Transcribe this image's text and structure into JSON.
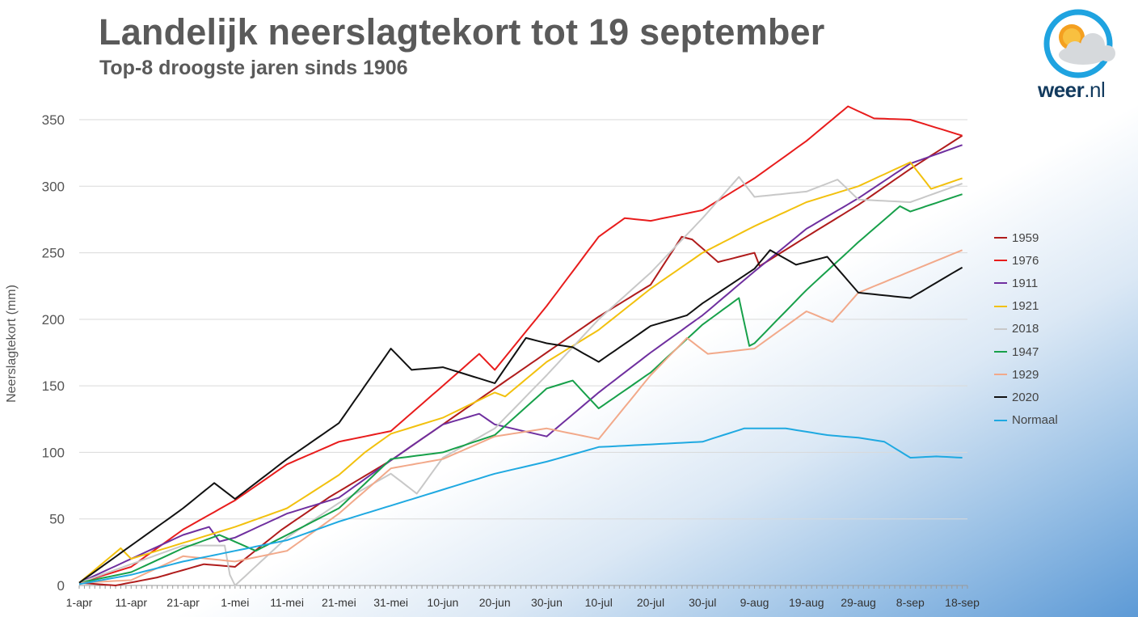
{
  "header": {
    "title": "Landelijk neerslagtekort tot 19 september",
    "subtitle": "Top-8 droogste jaren sinds 1906"
  },
  "logo": {
    "brand": "weer",
    "tld": ".nl",
    "icon": "sun-cloud-icon"
  },
  "chart_data": {
    "type": "line",
    "title": "Landelijk neerslagtekort tot 19 september",
    "subtitle": "Top-8 droogste jaren sinds 1906",
    "xlabel": "",
    "ylabel": "Neerslagtekort (mm)",
    "ylim": [
      0,
      350
    ],
    "yticks": [
      0,
      50,
      100,
      150,
      200,
      250,
      300,
      350
    ],
    "xlim": [
      "1-apr",
      "19-sep"
    ],
    "x_tick_labels": [
      "1-apr",
      "11-apr",
      "21-apr",
      "1-mei",
      "11-mei",
      "21-mei",
      "31-mei",
      "10-jun",
      "20-jun",
      "30-jun",
      "10-jul",
      "20-jul",
      "30-jul",
      "9-aug",
      "19-aug",
      "29-aug",
      "8-sep",
      "18-sep"
    ],
    "grid": "horizontal",
    "legend_position": "right",
    "series": [
      {
        "name": "1959",
        "color": "#b01c1c",
        "x": [
          "1-apr",
          "8-apr",
          "16-apr",
          "25-apr",
          "1-mei",
          "10-mei",
          "19-mei",
          "31-mei",
          "10-jun",
          "20-jun",
          "30-jun",
          "10-jul",
          "20-jul",
          "26-jul",
          "28-jul",
          "2-aug",
          "9-aug",
          "10-aug",
          "19-aug",
          "29-aug",
          "8-sep",
          "18-sep"
        ],
        "y": [
          2,
          0,
          6,
          16,
          14,
          42,
          66,
          94,
          121,
          148,
          175,
          202,
          226,
          262,
          260,
          243,
          250,
          240,
          262,
          286,
          313,
          338
        ]
      },
      {
        "name": "1976",
        "color": "#e81c1c",
        "x": [
          "1-apr",
          "11-apr",
          "21-apr",
          "1-mei",
          "11-mei",
          "21-mei",
          "31-mei",
          "10-jun",
          "17-jun",
          "20-jun",
          "30-jun",
          "10-jul",
          "15-jul",
          "20-jul",
          "30-jul",
          "9-aug",
          "19-aug",
          "27-aug",
          "1-sep",
          "8-sep",
          "18-sep"
        ],
        "y": [
          2,
          14,
          42,
          64,
          91,
          108,
          116,
          150,
          174,
          162,
          210,
          262,
          276,
          274,
          282,
          306,
          334,
          360,
          351,
          350,
          338
        ]
      },
      {
        "name": "1911",
        "color": "#6f2f9f",
        "x": [
          "1-apr",
          "21-apr",
          "26-apr",
          "28-apr",
          "1-mei",
          "11-mei",
          "21-mei",
          "31-mei",
          "10-jun",
          "17-jun",
          "20-jun",
          "30-jun",
          "10-jul",
          "20-jul",
          "30-jul",
          "9-aug",
          "19-aug",
          "29-aug",
          "8-sep",
          "18-sep"
        ],
        "y": [
          2,
          38,
          44,
          33,
          36,
          54,
          66,
          94,
          121,
          129,
          121,
          112,
          145,
          175,
          203,
          236,
          268,
          291,
          317,
          331
        ]
      },
      {
        "name": "1921",
        "color": "#f2c10e",
        "x": [
          "1-apr",
          "9-apr",
          "11-apr",
          "21-apr",
          "1-mei",
          "11-mei",
          "21-mei",
          "26-mei",
          "31-mei",
          "10-jun",
          "20-jun",
          "22-jun",
          "30-jun",
          "10-jul",
          "20-jul",
          "30-jul",
          "9-aug",
          "19-aug",
          "29-aug",
          "8-sep",
          "12-sep",
          "18-sep"
        ],
        "y": [
          2,
          28,
          20,
          32,
          44,
          58,
          83,
          100,
          114,
          126,
          145,
          142,
          168,
          192,
          223,
          250,
          270,
          288,
          300,
          318,
          298,
          306
        ]
      },
      {
        "name": "2018",
        "color": "#c8c8c8",
        "x": [
          "1-apr",
          "21-apr",
          "29-apr",
          "30-apr",
          "1-mei",
          "11-mei",
          "21-mei",
          "31-mei",
          "5-jun",
          "10-jun",
          "20-jun",
          "30-jun",
          "10-jul",
          "20-jul",
          "30-jul",
          "6-aug",
          "9-aug",
          "19-aug",
          "25-aug",
          "29-aug",
          "8-sep",
          "18-sep"
        ],
        "y": [
          2,
          30,
          30,
          8,
          0,
          36,
          62,
          84,
          69,
          96,
          118,
          158,
          200,
          235,
          276,
          307,
          292,
          296,
          305,
          290,
          288,
          302
        ]
      },
      {
        "name": "1947",
        "color": "#17a04a",
        "x": [
          "1-apr",
          "11-apr",
          "21-apr",
          "28-apr",
          "5-mei",
          "11-mei",
          "21-mei",
          "31-mei",
          "10-jun",
          "20-jun",
          "30-jun",
          "5-jul",
          "10-jul",
          "20-jul",
          "30-jul",
          "6-aug",
          "8-aug",
          "9-aug",
          "19-aug",
          "29-aug",
          "6-sep",
          "8-sep",
          "18-sep"
        ],
        "y": [
          2,
          10,
          28,
          38,
          26,
          38,
          58,
          95,
          100,
          113,
          148,
          154,
          133,
          160,
          196,
          216,
          180,
          182,
          222,
          258,
          285,
          281,
          294
        ]
      },
      {
        "name": "1929",
        "color": "#f2a98a",
        "x": [
          "1-apr",
          "11-apr",
          "21-apr",
          "1-mei",
          "11-mei",
          "21-mei",
          "31-mei",
          "10-jun",
          "20-jun",
          "30-jun",
          "10-jul",
          "20-jul",
          "27-jul",
          "31-jul",
          "9-aug",
          "19-aug",
          "24-aug",
          "29-aug",
          "8-sep",
          "18-sep"
        ],
        "y": [
          2,
          4,
          22,
          18,
          26,
          54,
          88,
          95,
          112,
          118,
          110,
          158,
          186,
          174,
          178,
          206,
          198,
          220,
          236,
          252
        ]
      },
      {
        "name": "2020",
        "color": "#111111",
        "x": [
          "1-apr",
          "11-apr",
          "21-apr",
          "27-apr",
          "1-mei",
          "11-mei",
          "21-mei",
          "31-mei",
          "4-jun",
          "10-jun",
          "20-jun",
          "26-jun",
          "30-jun",
          "5-jul",
          "10-jul",
          "20-jul",
          "27-jul",
          "30-jul",
          "9-aug",
          "12-aug",
          "17-aug",
          "23-aug",
          "29-aug",
          "8-sep",
          "18-sep"
        ],
        "y": [
          2,
          30,
          58,
          77,
          65,
          95,
          122,
          178,
          162,
          164,
          152,
          186,
          182,
          179,
          168,
          195,
          203,
          212,
          238,
          252,
          241,
          247,
          220,
          216,
          239
        ]
      },
      {
        "name": "Normaal",
        "color": "#1fa9e1",
        "x": [
          "1-apr",
          "11-apr",
          "21-apr",
          "1-mei",
          "11-mei",
          "21-mei",
          "31-mei",
          "10-jun",
          "20-jun",
          "30-jun",
          "10-jul",
          "20-jul",
          "30-jul",
          "7-aug",
          "15-aug",
          "23-aug",
          "29-aug",
          "3-sep",
          "8-sep",
          "13-sep",
          "18-sep"
        ],
        "y": [
          1,
          8,
          18,
          26,
          34,
          48,
          60,
          72,
          84,
          93,
          104,
          106,
          108,
          118,
          118,
          113,
          111,
          108,
          96,
          97,
          96
        ]
      }
    ]
  }
}
